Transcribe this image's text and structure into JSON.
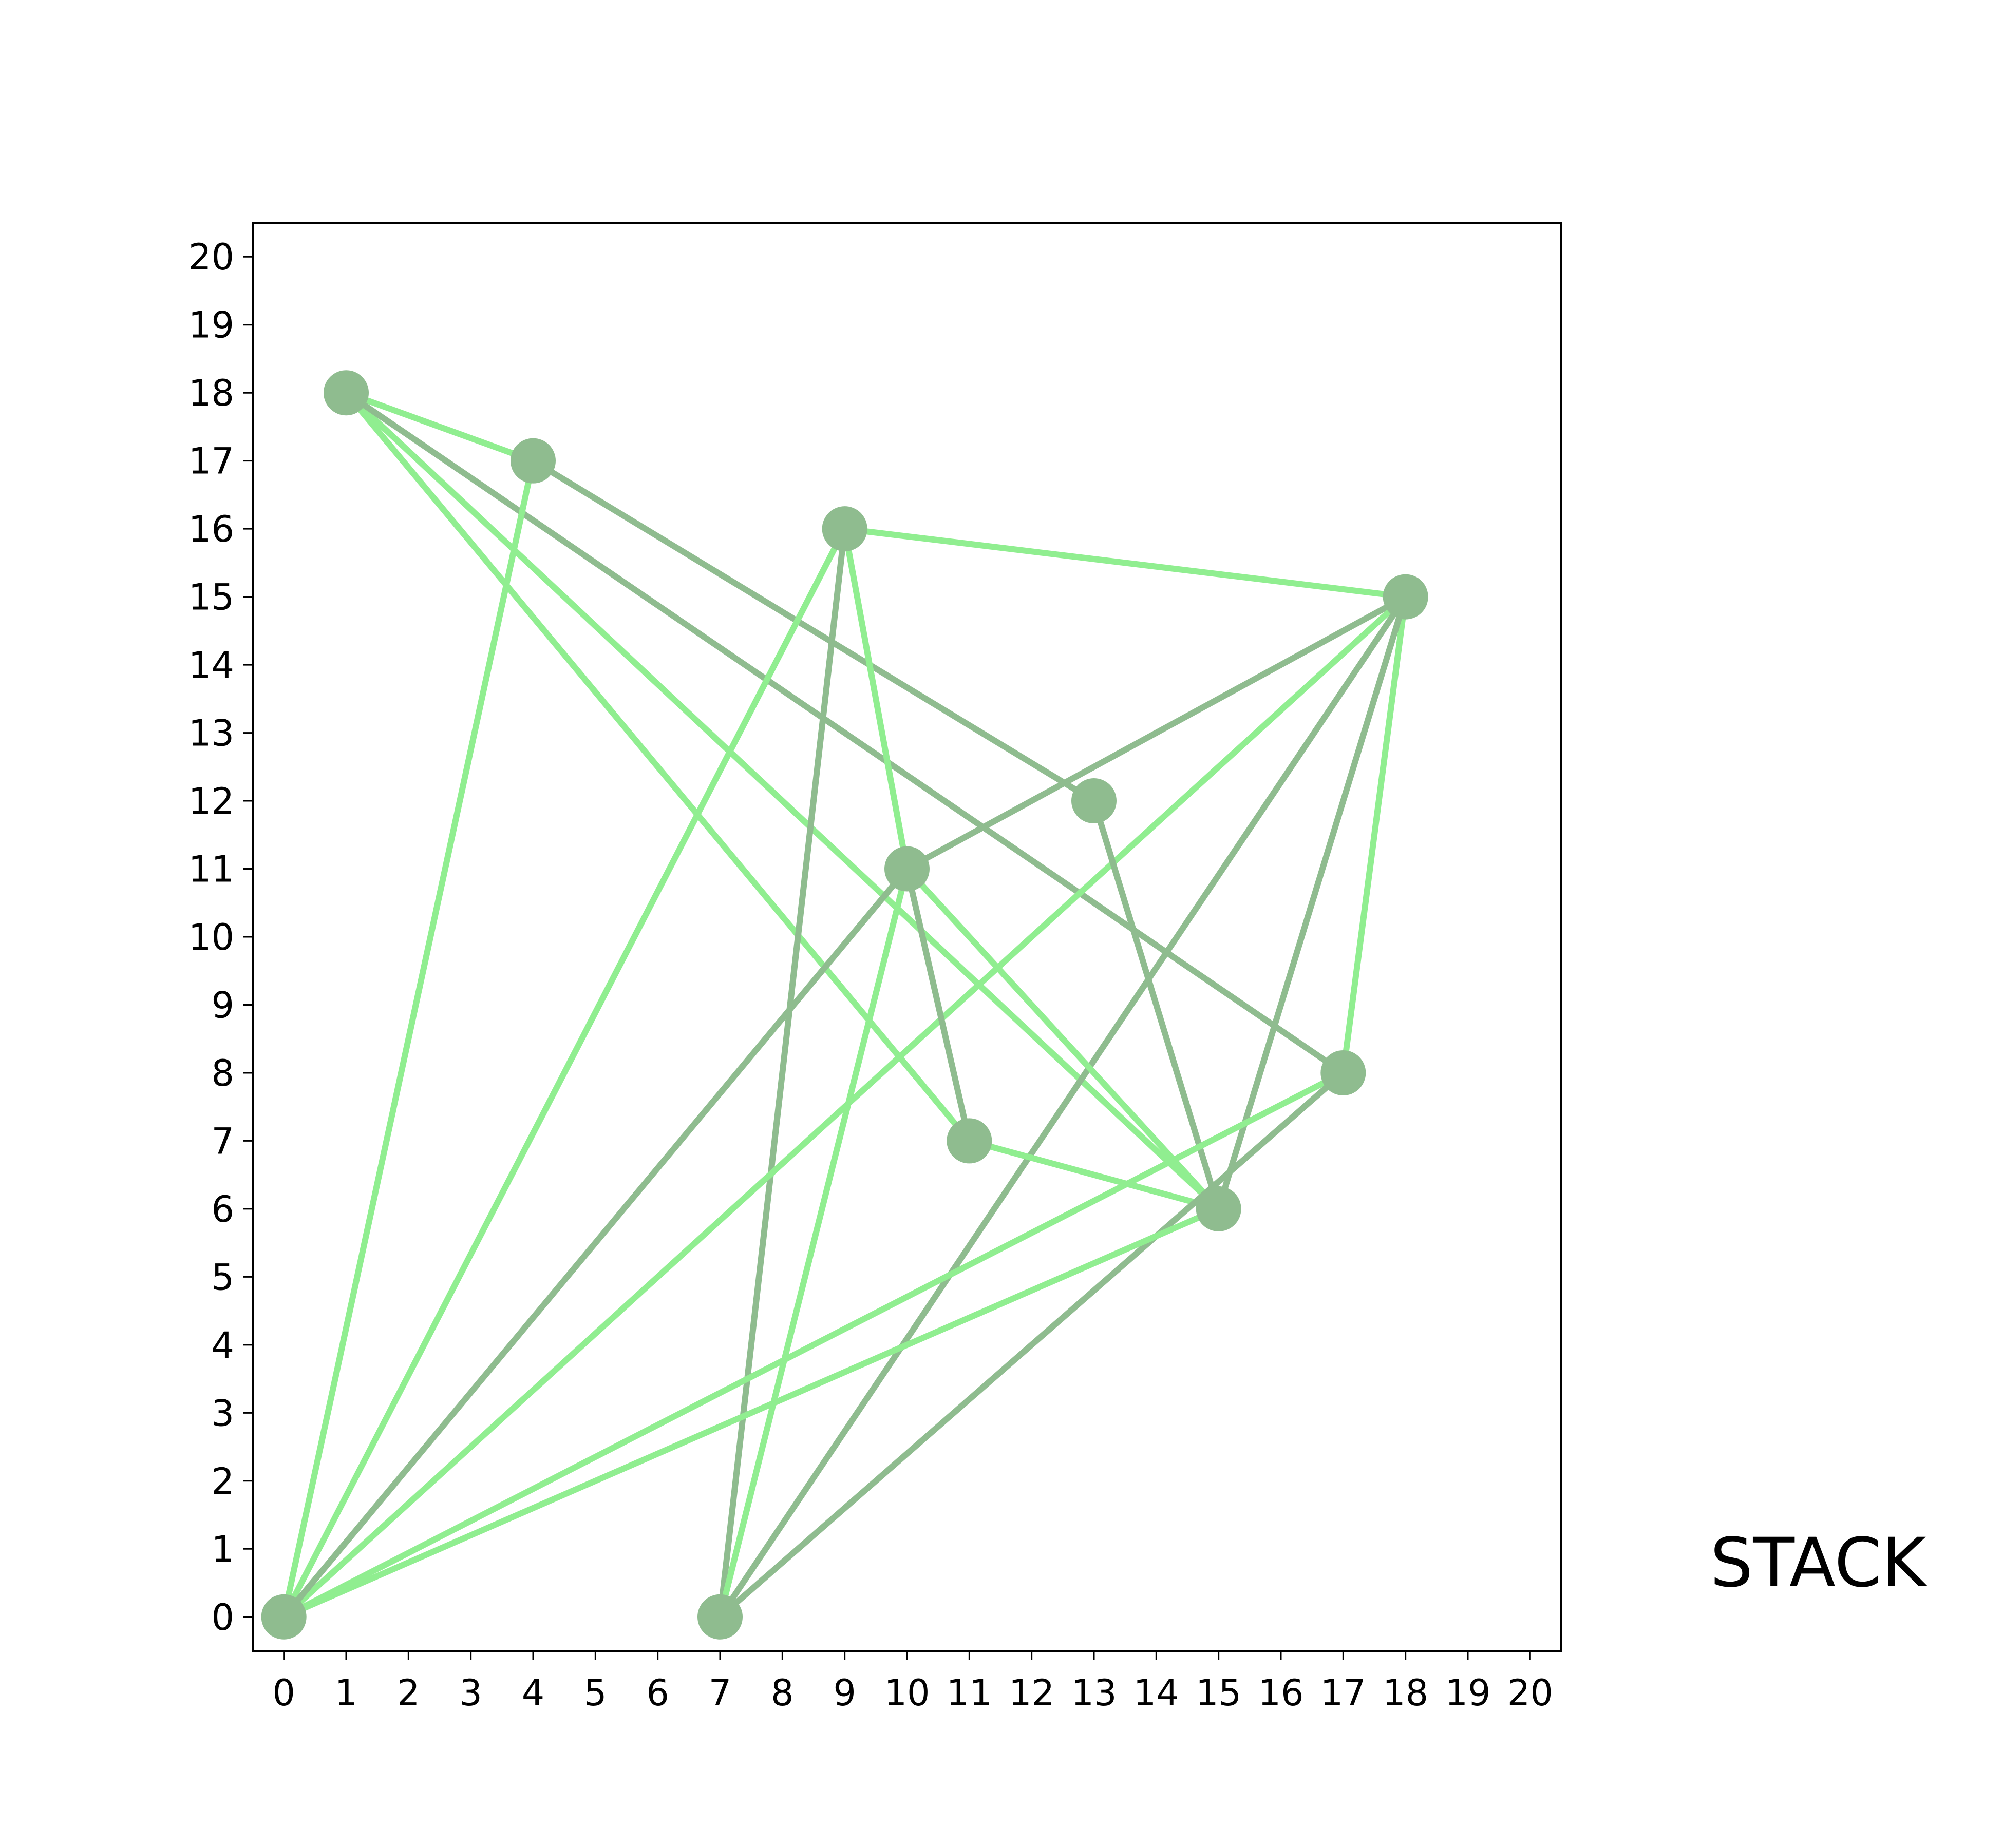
{
  "annotation": "STACK",
  "chart_data": {
    "type": "network",
    "xlim": [
      -0.5,
      20.5
    ],
    "ylim": [
      -0.5,
      20.5
    ],
    "xticks": [
      0,
      1,
      2,
      3,
      4,
      5,
      6,
      7,
      8,
      9,
      10,
      11,
      12,
      13,
      14,
      15,
      16,
      17,
      18,
      19,
      20
    ],
    "yticks": [
      0,
      1,
      2,
      3,
      4,
      5,
      6,
      7,
      8,
      9,
      10,
      11,
      12,
      13,
      14,
      15,
      16,
      17,
      18,
      19,
      20
    ],
    "colors": {
      "node": "#8fbc8f",
      "edge_light": "#90ee90",
      "edge_dark": "#8fbc8f"
    },
    "nodes": [
      {
        "id": "n0",
        "x": 0,
        "y": 0
      },
      {
        "id": "n1",
        "x": 7,
        "y": 0
      },
      {
        "id": "n2",
        "x": 1,
        "y": 18
      },
      {
        "id": "n3",
        "x": 4,
        "y": 17
      },
      {
        "id": "n4",
        "x": 9,
        "y": 16
      },
      {
        "id": "n5",
        "x": 18,
        "y": 15
      },
      {
        "id": "n6",
        "x": 13,
        "y": 12
      },
      {
        "id": "n7",
        "x": 10,
        "y": 11
      },
      {
        "id": "n8",
        "x": 17,
        "y": 8
      },
      {
        "id": "n9",
        "x": 11,
        "y": 7
      },
      {
        "id": "n10",
        "x": 15,
        "y": 6
      }
    ],
    "edges": [
      {
        "from": [
          1,
          18
        ],
        "to": [
          4,
          17
        ],
        "color": "light"
      },
      {
        "from": [
          1,
          18
        ],
        "to": [
          11,
          7
        ],
        "color": "light"
      },
      {
        "from": [
          1,
          18
        ],
        "to": [
          15,
          6
        ],
        "color": "light"
      },
      {
        "from": [
          1,
          18
        ],
        "to": [
          17,
          8
        ],
        "color": "dark"
      },
      {
        "from": [
          4,
          17
        ],
        "to": [
          0,
          0
        ],
        "color": "light"
      },
      {
        "from": [
          4,
          17
        ],
        "to": [
          13,
          12
        ],
        "color": "dark"
      },
      {
        "from": [
          9,
          16
        ],
        "to": [
          18,
          15
        ],
        "color": "light"
      },
      {
        "from": [
          9,
          16
        ],
        "to": [
          0,
          0
        ],
        "color": "light"
      },
      {
        "from": [
          9,
          16
        ],
        "to": [
          10,
          11
        ],
        "color": "light"
      },
      {
        "from": [
          9,
          16
        ],
        "to": [
          7,
          0
        ],
        "color": "dark"
      },
      {
        "from": [
          18,
          15
        ],
        "to": [
          10,
          11
        ],
        "color": "dark"
      },
      {
        "from": [
          18,
          15
        ],
        "to": [
          0,
          0
        ],
        "color": "light"
      },
      {
        "from": [
          18,
          15
        ],
        "to": [
          7,
          0
        ],
        "color": "dark"
      },
      {
        "from": [
          18,
          15
        ],
        "to": [
          17,
          8
        ],
        "color": "light"
      },
      {
        "from": [
          18,
          15
        ],
        "to": [
          15,
          6
        ],
        "color": "dark"
      },
      {
        "from": [
          13,
          12
        ],
        "to": [
          15,
          6
        ],
        "color": "dark"
      },
      {
        "from": [
          10,
          11
        ],
        "to": [
          0,
          0
        ],
        "color": "dark"
      },
      {
        "from": [
          10,
          11
        ],
        "to": [
          7,
          0
        ],
        "color": "light"
      },
      {
        "from": [
          10,
          11
        ],
        "to": [
          11,
          7
        ],
        "color": "dark"
      },
      {
        "from": [
          10,
          11
        ],
        "to": [
          15,
          6
        ],
        "color": "light"
      },
      {
        "from": [
          11,
          7
        ],
        "to": [
          15,
          6
        ],
        "color": "light"
      },
      {
        "from": [
          17,
          8
        ],
        "to": [
          0,
          0
        ],
        "color": "light"
      },
      {
        "from": [
          17,
          8
        ],
        "to": [
          7,
          0
        ],
        "color": "dark"
      },
      {
        "from": [
          15,
          6
        ],
        "to": [
          0,
          0
        ],
        "color": "light"
      }
    ]
  }
}
